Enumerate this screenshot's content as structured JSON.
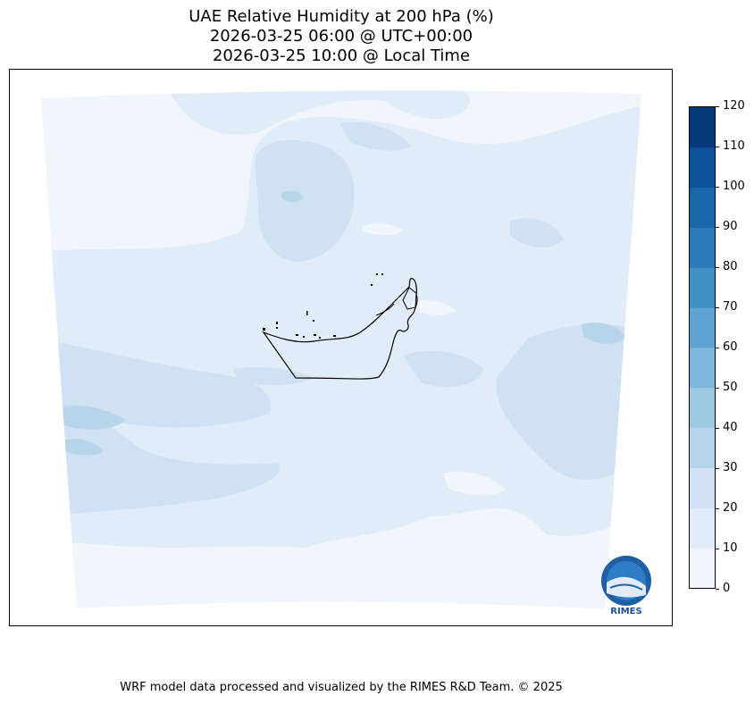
{
  "title": {
    "line1": "UAE Relative Humidity at 200 hPa (%)",
    "line2": "2026-03-25 06:00 @ UTC+00:00",
    "line3": "2026-03-25 10:00 @ Local Time"
  },
  "map": {
    "region": "United Arab Emirates",
    "variable": "Relative Humidity",
    "level": "200 hPa",
    "unit": "%"
  },
  "colorbar": {
    "ticks": [
      "0",
      "10",
      "20",
      "30",
      "40",
      "50",
      "60",
      "70",
      "80",
      "90",
      "100",
      "110",
      "120"
    ],
    "colors": [
      "#f0f6fc",
      "#e0ecf7",
      "#cfe1f2",
      "#b6d4ea",
      "#9ecae1",
      "#7fb7dc",
      "#5fa3d2",
      "#4290c5",
      "#2d7abb",
      "#1b65ab",
      "#0c529a",
      "#08397a"
    ]
  },
  "logo": {
    "text": "RIMES"
  },
  "footer": "WRF model data processed and visualized by the RIMES R&D Team. © 2025"
}
